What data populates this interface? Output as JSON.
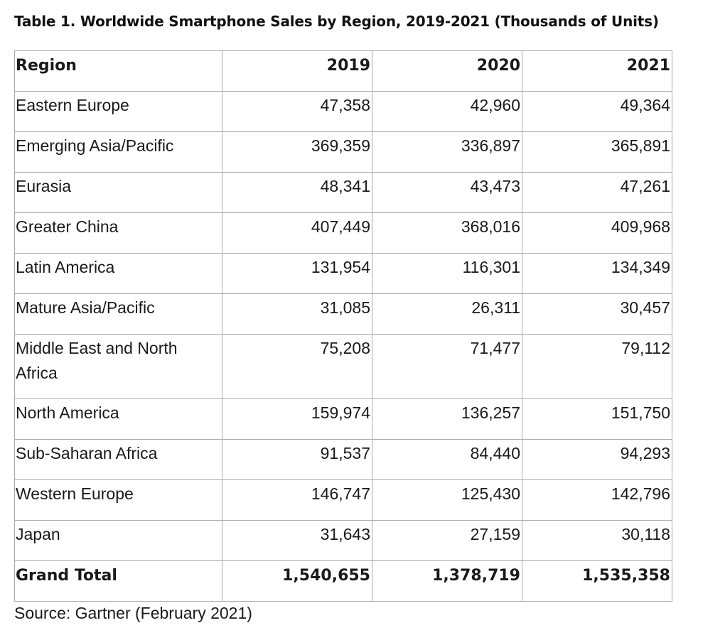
{
  "title": "Table 1. Worldwide Smartphone Sales by Region, 2019-2021 (Thousands of Units)",
  "table": {
    "headers": [
      "Region",
      "2019",
      "2020",
      "2021"
    ],
    "rows": [
      {
        "region": "Eastern Europe",
        "y2019": "47,358",
        "y2020": "42,960",
        "y2021": "49,364"
      },
      {
        "region": "Emerging Asia/Pacific",
        "y2019": "369,359",
        "y2020": "336,897",
        "y2021": "365,891"
      },
      {
        "region": "Eurasia",
        "y2019": "48,341",
        "y2020": "43,473",
        "y2021": "47,261"
      },
      {
        "region": "Greater China",
        "y2019": "407,449",
        "y2020": "368,016",
        "y2021": "409,968"
      },
      {
        "region": "Latin America",
        "y2019": "131,954",
        "y2020": "116,301",
        "y2021": "134,349"
      },
      {
        "region": "Mature Asia/Pacific",
        "y2019": "31,085",
        "y2020": "26,311",
        "y2021": "30,457"
      },
      {
        "region": "Middle East and North Africa",
        "y2019": "75,208",
        "y2020": "71,477",
        "y2021": "79,112"
      },
      {
        "region": "North America",
        "y2019": "159,974",
        "y2020": "136,257",
        "y2021": "151,750"
      },
      {
        "region": "Sub-Saharan Africa",
        "y2019": "91,537",
        "y2020": "84,440",
        "y2021": "94,293"
      },
      {
        "region": "Western Europe",
        "y2019": "146,747",
        "y2020": "125,430",
        "y2021": "142,796"
      },
      {
        "region": "Japan",
        "y2019": "31,643",
        "y2020": "27,159",
        "y2021": "30,118"
      }
    ],
    "total": {
      "label": "Grand Total",
      "y2019": "1,540,655",
      "y2020": "1,378,719",
      "y2021": "1,535,358"
    }
  },
  "source": "Source: Gartner (February 2021)"
}
